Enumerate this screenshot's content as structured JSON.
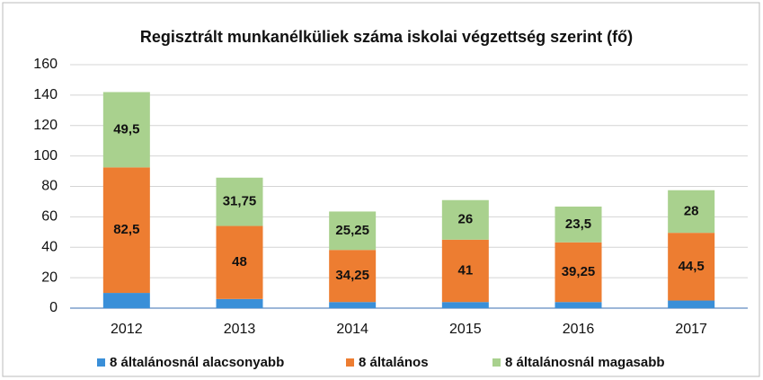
{
  "chart_data": {
    "type": "stacked_bar",
    "title": "Regisztrált munkanélküliek száma iskolai végzettség szerint (fő)",
    "categories": [
      "2012",
      "2013",
      "2014",
      "2015",
      "2016",
      "2017"
    ],
    "series": [
      {
        "name": "8 általánosnál alacsonyabb",
        "color": "#3a8fd8",
        "values": [
          10,
          6,
          4,
          4,
          4,
          5
        ]
      },
      {
        "name": "8 általános",
        "color": "#ed7d31",
        "values": [
          82.5,
          48,
          34.25,
          41,
          39.25,
          44.5
        ],
        "value_labels": [
          "82,5",
          "48",
          "34,25",
          "41",
          "39,25",
          "44,5"
        ]
      },
      {
        "name": "8 általánosnál magasabb",
        "color": "#a9d18e",
        "values": [
          49.5,
          31.75,
          25.25,
          26,
          23.5,
          28
        ],
        "value_labels": [
          "49,5",
          "31,75",
          "25,25",
          "26",
          "23,5",
          "28"
        ]
      }
    ],
    "ylim": [
      0,
      160
    ],
    "yticks": [
      0,
      20,
      40,
      60,
      80,
      100,
      120,
      140,
      160
    ],
    "grid": true,
    "legend": "bottom"
  }
}
